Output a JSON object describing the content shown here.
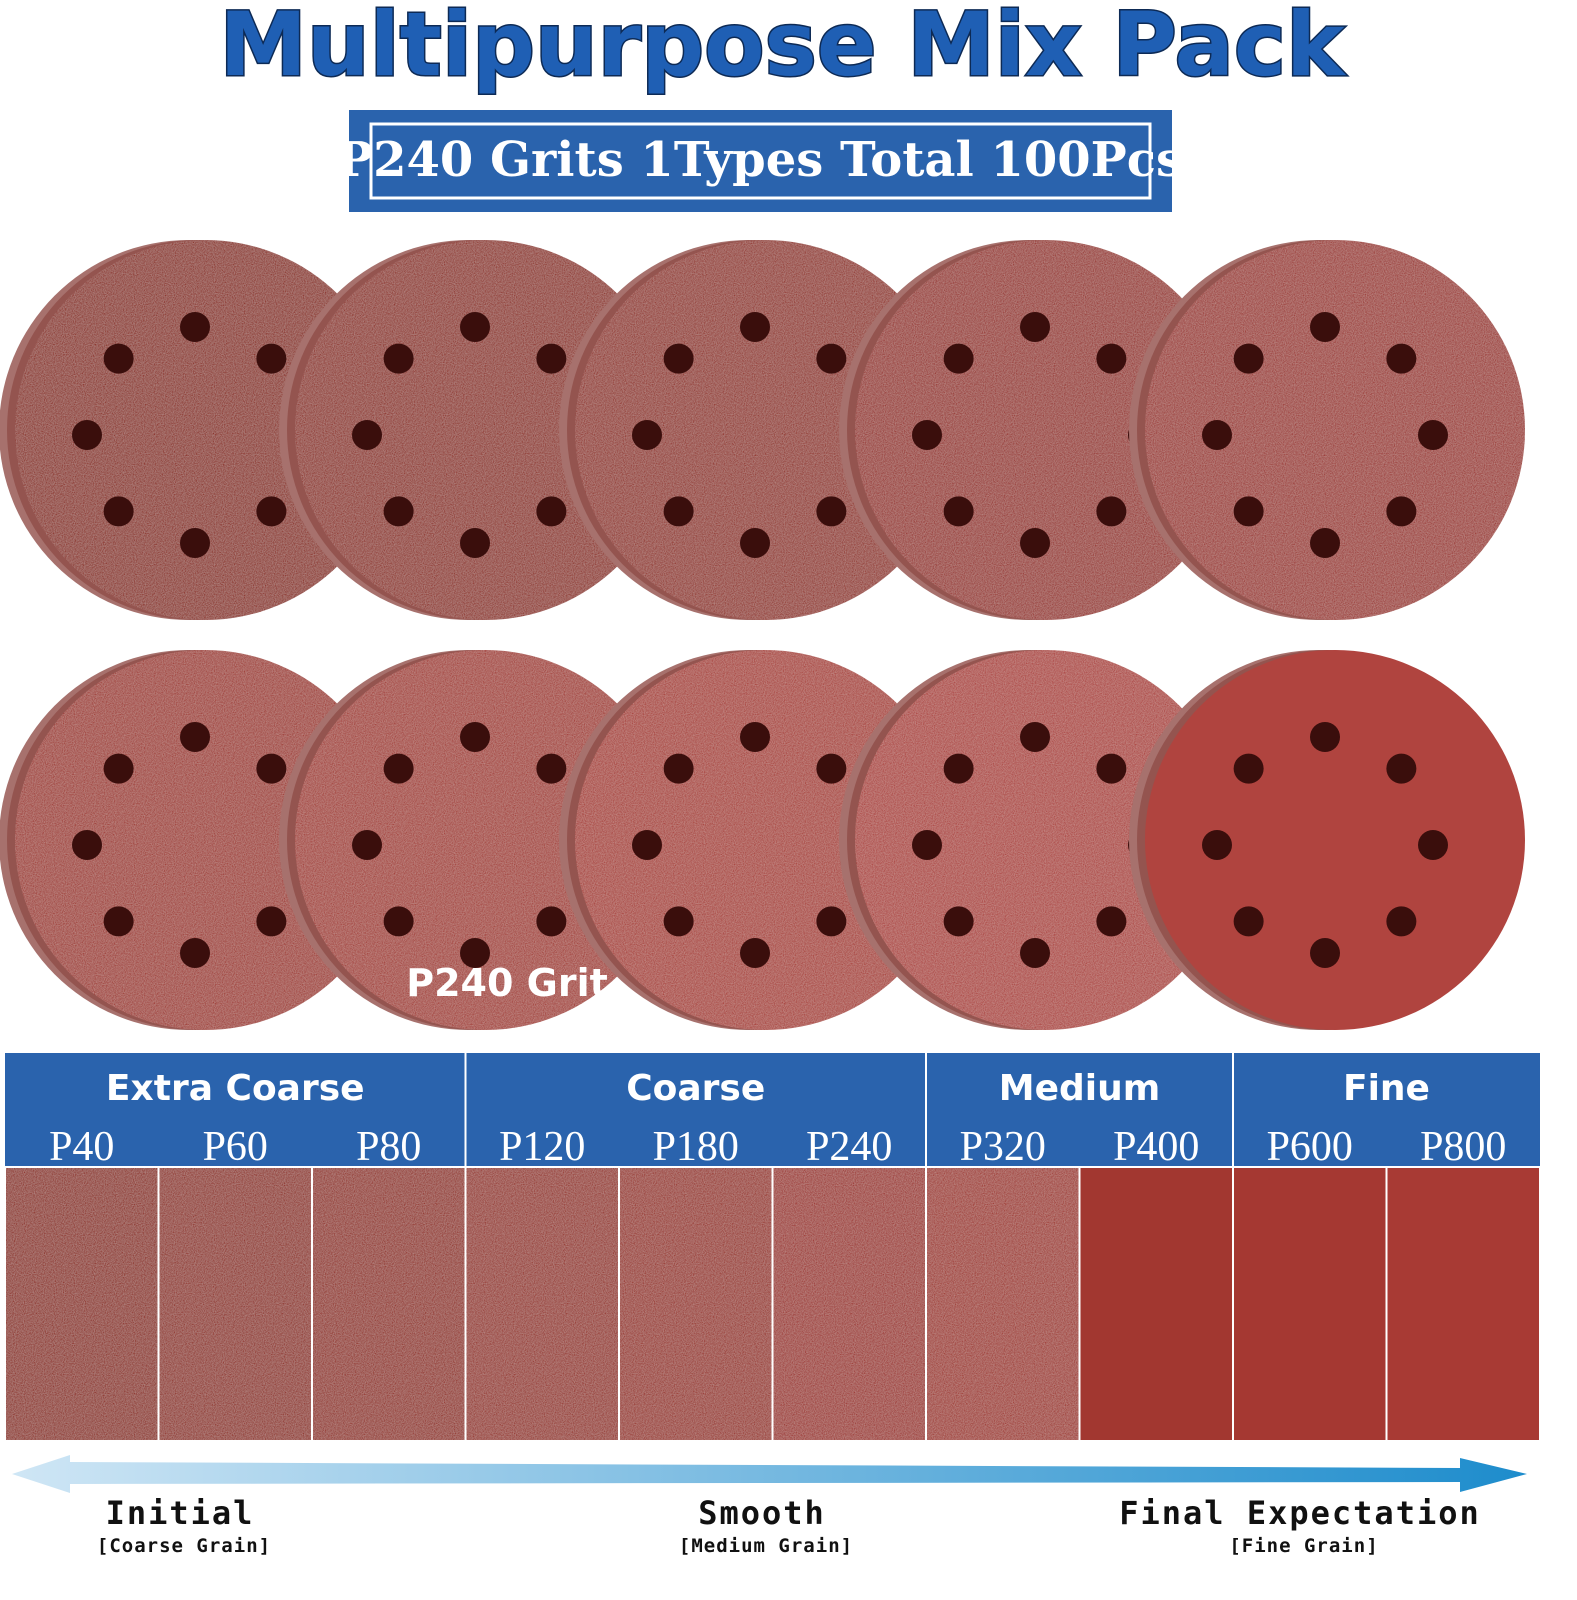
{
  "title": "Multipurpose Mix Pack",
  "subtitle": "P240 Grits 1Types Total 100Pcs",
  "disc_label": "P240 Grit",
  "groups": [
    {
      "name": "Extra Coarse",
      "grits": [
        "P40",
        "P60",
        "P80"
      ]
    },
    {
      "name": "Coarse",
      "grits": [
        "P120",
        "P180",
        "P240"
      ]
    },
    {
      "name": "Medium",
      "grits": [
        "P320",
        "P400"
      ]
    },
    {
      "name": "Fine",
      "grits": [
        "P600",
        "P800"
      ]
    }
  ],
  "progress": [
    {
      "label": "Initial",
      "sub": "[Coarse Grain]"
    },
    {
      "label": "Smooth",
      "sub": "[Medium Grain]"
    },
    {
      "label": "Final Expectation",
      "sub": "[Fine Grain]"
    }
  ]
}
